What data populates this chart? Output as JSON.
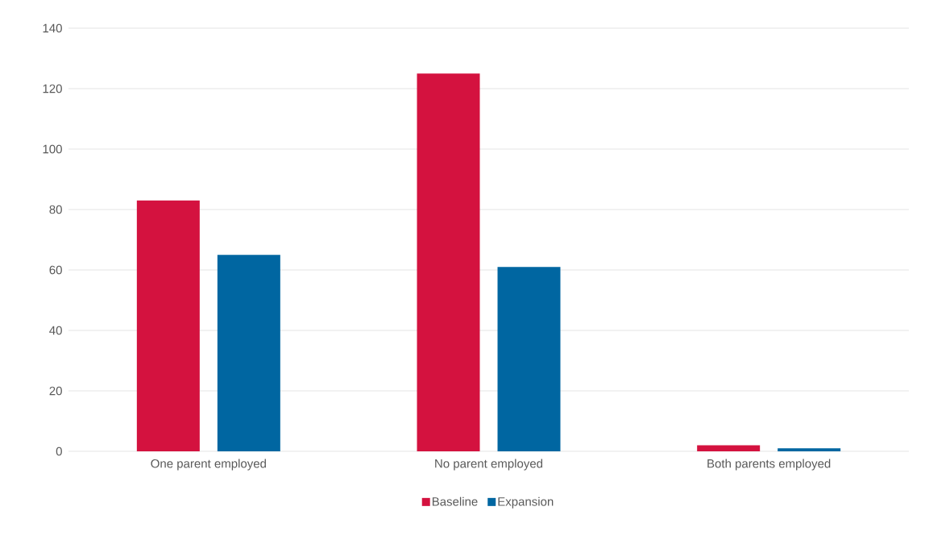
{
  "chart_data": {
    "type": "bar",
    "categories": [
      "One parent employed",
      "No parent employed",
      "Both parents employed"
    ],
    "series": [
      {
        "name": "Baseline",
        "color": "#d4123f",
        "values": [
          83,
          125,
          2
        ]
      },
      {
        "name": "Expansion",
        "color": "#0066a1",
        "values": [
          65,
          61,
          1
        ]
      }
    ],
    "ylim": [
      0,
      140
    ],
    "yticks": [
      0,
      20,
      40,
      60,
      80,
      100,
      120,
      140
    ],
    "grid": "y",
    "legend": "bottom"
  }
}
